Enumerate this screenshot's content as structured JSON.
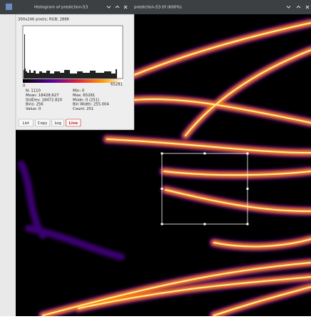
{
  "image_window": {
    "title": "prediction-53.tif (600%)"
  },
  "histogram_window": {
    "title": "Histogram of prediction-53",
    "image_info": "300x246 pixels; RGB; 288K",
    "axis_min": "0",
    "axis_max": "65281",
    "stats": [
      [
        "N: 1110",
        "Min: 0"
      ],
      [
        "Mean: 18428.627",
        "Max: 65281"
      ],
      [
        "StdDev: 18472.820",
        "Mode: 0 (251)"
      ],
      [
        "Bins: 256",
        "Bin Width: 255.004"
      ],
      [
        "Value: 0",
        "Count: 251"
      ]
    ],
    "buttons": [
      "List",
      "Copy",
      "Log",
      "Live"
    ]
  }
}
